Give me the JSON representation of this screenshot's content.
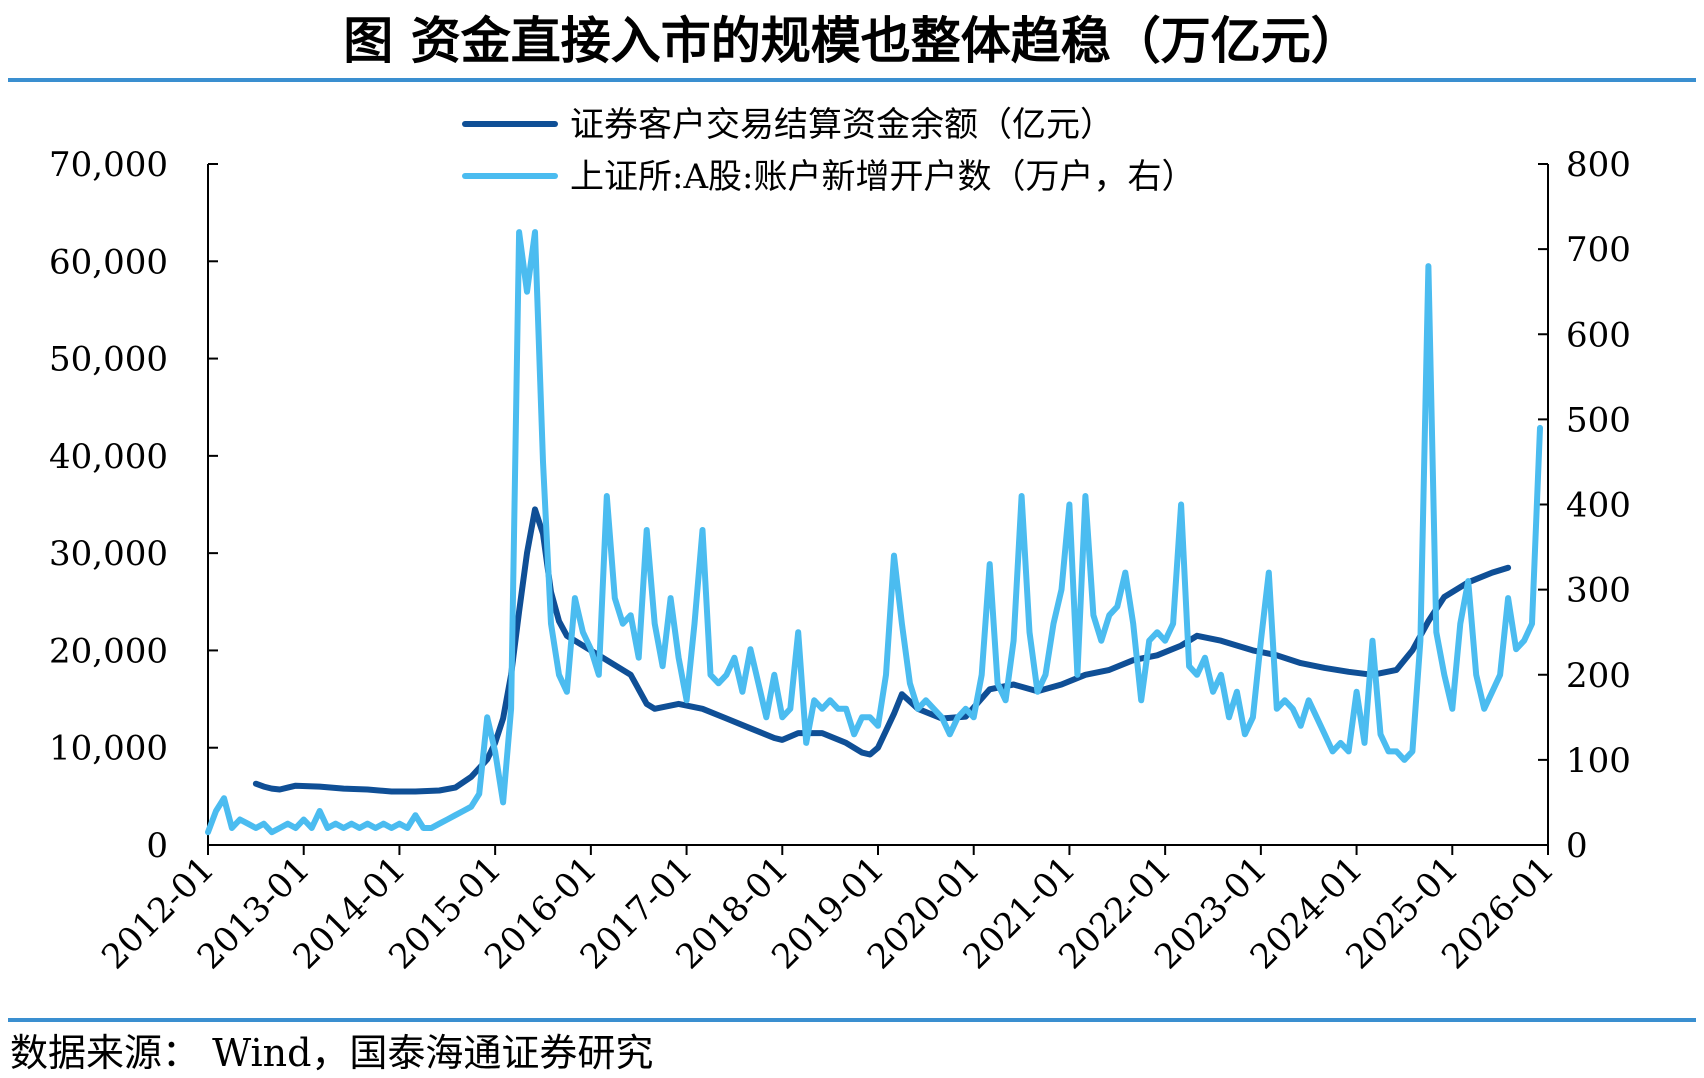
{
  "title": "图  资金直接入市的规模也整体趋稳（万亿元）",
  "source": "数据来源：  Wind，国泰海通证券研究",
  "chart_data": {
    "type": "line",
    "title": "图  资金直接入市的规模也整体趋稳（万亿元）",
    "legend_position": "top-center",
    "grid": false,
    "x_ticks": [
      "2012-01",
      "2013-01",
      "2014-01",
      "2015-01",
      "2016-01",
      "2017-01",
      "2018-01",
      "2019-01",
      "2020-01",
      "2021-01",
      "2022-01",
      "2023-01",
      "2024-01",
      "2025-01",
      "2026-01"
    ],
    "y_left": {
      "ylim": [
        0,
        70000
      ],
      "ticks": [
        "0",
        "10,000",
        "20,000",
        "30,000",
        "40,000",
        "50,000",
        "60,000",
        "70,000"
      ]
    },
    "y_right": {
      "ylim": [
        0,
        800
      ],
      "ticks": [
        "0",
        "100",
        "200",
        "300",
        "400",
        "500",
        "600",
        "700",
        "800"
      ]
    },
    "series": [
      {
        "name": "证券客户交易结算资金余额（亿元）",
        "axis": "left",
        "color": "#0f4f96",
        "points": [
          [
            "2012-07",
            6300
          ],
          [
            "2012-08",
            6000
          ],
          [
            "2012-09",
            5800
          ],
          [
            "2012-10",
            5700
          ],
          [
            "2012-11",
            5900
          ],
          [
            "2012-12",
            6100
          ],
          [
            "2013-03",
            6000
          ],
          [
            "2013-06",
            5800
          ],
          [
            "2013-09",
            5700
          ],
          [
            "2013-12",
            5500
          ],
          [
            "2014-03",
            5500
          ],
          [
            "2014-06",
            5600
          ],
          [
            "2014-08",
            5900
          ],
          [
            "2014-10",
            7000
          ],
          [
            "2014-12",
            8800
          ],
          [
            "2015-01",
            10500
          ],
          [
            "2015-02",
            13000
          ],
          [
            "2015-03",
            17500
          ],
          [
            "2015-04",
            24000
          ],
          [
            "2015-05",
            30000
          ],
          [
            "2015-06",
            34500
          ],
          [
            "2015-07",
            32000
          ],
          [
            "2015-08",
            26000
          ],
          [
            "2015-09",
            23000
          ],
          [
            "2015-10",
            21500
          ],
          [
            "2015-12",
            20500
          ],
          [
            "2016-03",
            19000
          ],
          [
            "2016-06",
            17500
          ],
          [
            "2016-08",
            14500
          ],
          [
            "2016-09",
            14000
          ],
          [
            "2016-12",
            14500
          ],
          [
            "2017-03",
            14000
          ],
          [
            "2017-06",
            13000
          ],
          [
            "2017-09",
            12000
          ],
          [
            "2017-12",
            11000
          ],
          [
            "2018-01",
            10800
          ],
          [
            "2018-03",
            11500
          ],
          [
            "2018-06",
            11500
          ],
          [
            "2018-09",
            10500
          ],
          [
            "2018-11",
            9500
          ],
          [
            "2018-12",
            9300
          ],
          [
            "2019-01",
            10000
          ],
          [
            "2019-03",
            13500
          ],
          [
            "2019-04",
            15500
          ],
          [
            "2019-06",
            14000
          ],
          [
            "2019-09",
            13000
          ],
          [
            "2019-12",
            13200
          ],
          [
            "2020-03",
            16000
          ],
          [
            "2020-06",
            16500
          ],
          [
            "2020-09",
            15800
          ],
          [
            "2020-12",
            16500
          ],
          [
            "2021-03",
            17500
          ],
          [
            "2021-06",
            18000
          ],
          [
            "2021-09",
            19000
          ],
          [
            "2021-12",
            19500
          ],
          [
            "2022-03",
            20500
          ],
          [
            "2022-05",
            21500
          ],
          [
            "2022-08",
            21000
          ],
          [
            "2022-12",
            20000
          ],
          [
            "2023-03",
            19500
          ],
          [
            "2023-06",
            18700
          ],
          [
            "2023-09",
            18200
          ],
          [
            "2023-12",
            17800
          ],
          [
            "2024-03",
            17500
          ],
          [
            "2024-06",
            18000
          ],
          [
            "2024-08",
            20000
          ],
          [
            "2024-10",
            23000
          ],
          [
            "2024-12",
            25500
          ],
          [
            "2025-03",
            27000
          ],
          [
            "2025-06",
            28000
          ],
          [
            "2025-08",
            28500
          ]
        ]
      },
      {
        "name": "上证所:A股:账户新增开户数（万户，右）",
        "axis": "right",
        "color": "#4bbcf0",
        "points": [
          [
            "2012-01",
            15
          ],
          [
            "2012-02",
            40
          ],
          [
            "2012-03",
            55
          ],
          [
            "2012-04",
            20
          ],
          [
            "2012-05",
            30
          ],
          [
            "2012-06",
            25
          ],
          [
            "2012-07",
            20
          ],
          [
            "2012-08",
            25
          ],
          [
            "2012-09",
            15
          ],
          [
            "2012-10",
            20
          ],
          [
            "2012-11",
            25
          ],
          [
            "2012-12",
            20
          ],
          [
            "2013-01",
            30
          ],
          [
            "2013-02",
            20
          ],
          [
            "2013-03",
            40
          ],
          [
            "2013-04",
            20
          ],
          [
            "2013-05",
            25
          ],
          [
            "2013-06",
            20
          ],
          [
            "2013-07",
            25
          ],
          [
            "2013-08",
            20
          ],
          [
            "2013-09",
            25
          ],
          [
            "2013-10",
            20
          ],
          [
            "2013-11",
            25
          ],
          [
            "2013-12",
            20
          ],
          [
            "2014-01",
            25
          ],
          [
            "2014-02",
            20
          ],
          [
            "2014-03",
            35
          ],
          [
            "2014-04",
            20
          ],
          [
            "2014-05",
            20
          ],
          [
            "2014-06",
            25
          ],
          [
            "2014-07",
            30
          ],
          [
            "2014-08",
            35
          ],
          [
            "2014-09",
            40
          ],
          [
            "2014-10",
            45
          ],
          [
            "2014-11",
            60
          ],
          [
            "2014-12",
            150
          ],
          [
            "2015-01",
            110
          ],
          [
            "2015-02",
            50
          ],
          [
            "2015-03",
            160
          ],
          [
            "2015-04",
            720
          ],
          [
            "2015-05",
            650
          ],
          [
            "2015-06",
            720
          ],
          [
            "2015-07",
            450
          ],
          [
            "2015-08",
            260
          ],
          [
            "2015-09",
            200
          ],
          [
            "2015-10",
            180
          ],
          [
            "2015-11",
            290
          ],
          [
            "2015-12",
            250
          ],
          [
            "2016-01",
            230
          ],
          [
            "2016-02",
            200
          ],
          [
            "2016-03",
            410
          ],
          [
            "2016-04",
            290
          ],
          [
            "2016-05",
            260
          ],
          [
            "2016-06",
            270
          ],
          [
            "2016-07",
            220
          ],
          [
            "2016-08",
            370
          ],
          [
            "2016-09",
            260
          ],
          [
            "2016-10",
            210
          ],
          [
            "2016-11",
            290
          ],
          [
            "2016-12",
            220
          ],
          [
            "2017-01",
            170
          ],
          [
            "2017-02",
            260
          ],
          [
            "2017-03",
            370
          ],
          [
            "2017-04",
            200
          ],
          [
            "2017-05",
            190
          ],
          [
            "2017-06",
            200
          ],
          [
            "2017-07",
            220
          ],
          [
            "2017-08",
            180
          ],
          [
            "2017-09",
            230
          ],
          [
            "2017-10",
            190
          ],
          [
            "2017-11",
            150
          ],
          [
            "2017-12",
            200
          ],
          [
            "2018-01",
            150
          ],
          [
            "2018-02",
            160
          ],
          [
            "2018-03",
            250
          ],
          [
            "2018-04",
            120
          ],
          [
            "2018-05",
            170
          ],
          [
            "2018-06",
            160
          ],
          [
            "2018-07",
            170
          ],
          [
            "2018-08",
            160
          ],
          [
            "2018-09",
            160
          ],
          [
            "2018-10",
            130
          ],
          [
            "2018-11",
            150
          ],
          [
            "2018-12",
            150
          ],
          [
            "2019-01",
            140
          ],
          [
            "2019-02",
            200
          ],
          [
            "2019-03",
            340
          ],
          [
            "2019-04",
            260
          ],
          [
            "2019-05",
            190
          ],
          [
            "2019-06",
            160
          ],
          [
            "2019-07",
            170
          ],
          [
            "2019-08",
            160
          ],
          [
            "2019-09",
            150
          ],
          [
            "2019-10",
            130
          ],
          [
            "2019-11",
            150
          ],
          [
            "2019-12",
            160
          ],
          [
            "2020-01",
            150
          ],
          [
            "2020-02",
            200
          ],
          [
            "2020-03",
            330
          ],
          [
            "2020-04",
            190
          ],
          [
            "2020-05",
            170
          ],
          [
            "2020-06",
            240
          ],
          [
            "2020-07",
            410
          ],
          [
            "2020-08",
            250
          ],
          [
            "2020-09",
            180
          ],
          [
            "2020-10",
            200
          ],
          [
            "2020-11",
            260
          ],
          [
            "2020-12",
            300
          ],
          [
            "2021-01",
            400
          ],
          [
            "2021-02",
            200
          ],
          [
            "2021-03",
            410
          ],
          [
            "2021-04",
            270
          ],
          [
            "2021-05",
            240
          ],
          [
            "2021-06",
            270
          ],
          [
            "2021-07",
            280
          ],
          [
            "2021-08",
            320
          ],
          [
            "2021-09",
            260
          ],
          [
            "2021-10",
            170
          ],
          [
            "2021-11",
            240
          ],
          [
            "2021-12",
            250
          ],
          [
            "2022-01",
            240
          ],
          [
            "2022-02",
            260
          ],
          [
            "2022-03",
            400
          ],
          [
            "2022-04",
            210
          ],
          [
            "2022-05",
            200
          ],
          [
            "2022-06",
            220
          ],
          [
            "2022-07",
            180
          ],
          [
            "2022-08",
            200
          ],
          [
            "2022-09",
            150
          ],
          [
            "2022-10",
            180
          ],
          [
            "2022-11",
            130
          ],
          [
            "2022-12",
            150
          ],
          [
            "2023-01",
            240
          ],
          [
            "2023-02",
            320
          ],
          [
            "2023-03",
            160
          ],
          [
            "2023-04",
            170
          ],
          [
            "2023-05",
            160
          ],
          [
            "2023-06",
            140
          ],
          [
            "2023-07",
            170
          ],
          [
            "2023-08",
            150
          ],
          [
            "2023-09",
            130
          ],
          [
            "2023-10",
            110
          ],
          [
            "2023-11",
            120
          ],
          [
            "2023-12",
            110
          ],
          [
            "2024-01",
            180
          ],
          [
            "2024-02",
            120
          ],
          [
            "2024-03",
            240
          ],
          [
            "2024-04",
            130
          ],
          [
            "2024-05",
            110
          ],
          [
            "2024-06",
            110
          ],
          [
            "2024-07",
            100
          ],
          [
            "2024-08",
            110
          ],
          [
            "2024-09",
            240
          ],
          [
            "2024-10",
            680
          ],
          [
            "2024-11",
            250
          ],
          [
            "2024-12",
            200
          ],
          [
            "2025-01",
            160
          ],
          [
            "2025-02",
            260
          ],
          [
            "2025-03",
            310
          ],
          [
            "2025-04",
            200
          ],
          [
            "2025-05",
            160
          ],
          [
            "2025-06",
            180
          ],
          [
            "2025-07",
            200
          ],
          [
            "2025-08",
            290
          ],
          [
            "2025-09",
            230
          ],
          [
            "2025-10",
            240
          ],
          [
            "2025-11",
            260
          ],
          [
            "2025-12",
            490
          ]
        ]
      }
    ]
  }
}
